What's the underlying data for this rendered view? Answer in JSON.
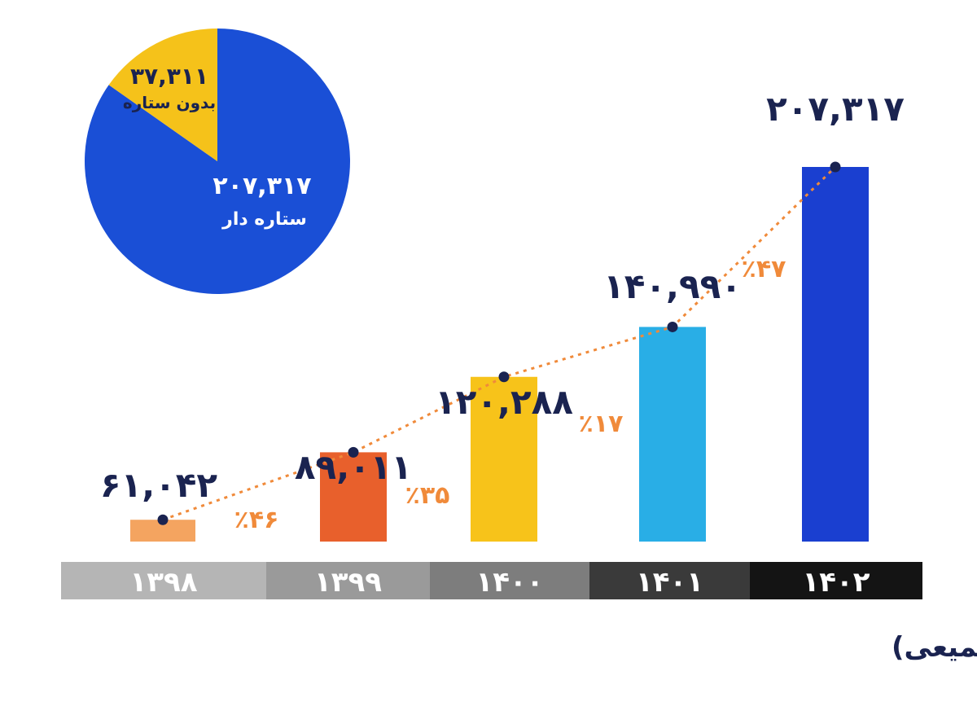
{
  "chart_data": [
    {
      "type": "bar",
      "title": "تعداد واحدهای تجارت الکترونیکی دارای اینماد فعال(تجمیعی)",
      "categories": [
        "۱۳۹۸",
        "۱۳۹۹",
        "۱۴۰۰",
        "۱۴۰۱",
        "۱۴۰۲"
      ],
      "values": [
        61042,
        89011,
        120288,
        140990,
        207317
      ],
      "value_labels": [
        "۶۱,۰۴۲",
        "۸۹,۰۱۱",
        "۱۲۰,۲۸۸",
        "۱۴۰,۹۹۰",
        "۲۰۷,۳۱۷"
      ],
      "bar_colors": [
        "#f4a460",
        "#e8602c",
        "#f7c31a",
        "#29aee6",
        "#1a3fd0"
      ],
      "axis_band_colors": [
        "#b5b5b5",
        "#9a9a9a",
        "#7d7d7d",
        "#3a3a3a",
        "#141414"
      ],
      "growth_labels": [
        "٪۴۶",
        "٪۳۵",
        "٪۱۷",
        "٪۴۷"
      ],
      "growth_color": "#f08a3a",
      "ylim": [
        50000,
        215000
      ]
    },
    {
      "type": "pie",
      "slices": [
        {
          "label": "ستاره دار",
          "value": 207317,
          "value_label": "۲۰۷,۳۱۷",
          "color": "#1a4fd6"
        },
        {
          "label": "بدون ستاره",
          "value": 37311,
          "value_label": "۳۷,۳۱۱",
          "color": "#f5c21a"
        }
      ]
    }
  ]
}
